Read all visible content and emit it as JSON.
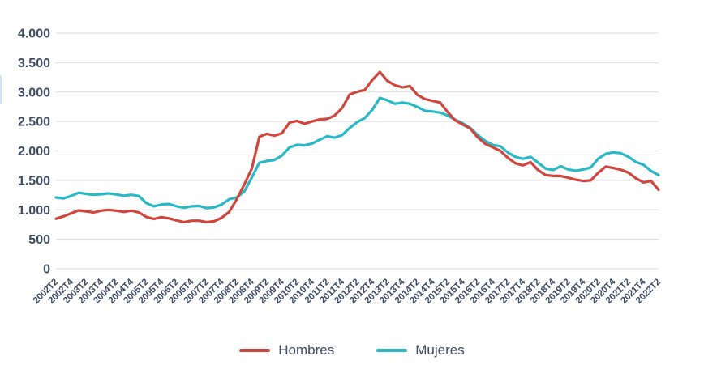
{
  "colors": {
    "grid": "#d9d9d9",
    "text": "#3d4a63",
    "background": "#ffffff",
    "hombres": "#d0453c",
    "mujeres": "#29b8c5"
  },
  "chart_data": {
    "type": "line",
    "title": "",
    "grid": true,
    "legend_position": "bottom",
    "x_axis": {
      "points_per_tick": 2,
      "tick_labels": [
        "2002T2",
        "2002T4",
        "2003T2",
        "2003T4",
        "2004T2",
        "2004T4",
        "2005T2",
        "2005T4",
        "2006T2",
        "2006T4",
        "2007T2",
        "2007T4",
        "2008T2",
        "2008T4",
        "2009T2",
        "2009T4",
        "2010T2",
        "2010T4",
        "2011T2",
        "2011T4",
        "2012T2",
        "2012T4",
        "2013T2",
        "2013T4",
        "2014T2",
        "2014T4",
        "2015T2",
        "2015T4",
        "2016T2",
        "2016T4",
        "2017T2",
        "2017T4",
        "2018T2",
        "2018T4",
        "2019T2",
        "2019T4",
        "2020T2",
        "2020T4",
        "2021T2",
        "2021T4",
        "2022T2"
      ]
    },
    "y_axis": {
      "range": [
        0,
        4000
      ],
      "tick_values": [
        0,
        500,
        1000,
        1500,
        2000,
        2500,
        3000,
        3500,
        4000
      ],
      "tick_labels": [
        "0",
        "500",
        "1.000",
        "1.500",
        "2.000",
        "2.500",
        "3.000",
        "3.500",
        "4.000"
      ]
    },
    "series": [
      {
        "name": "Hombres",
        "color": "#d0453c",
        "values": [
          850,
          890,
          940,
          990,
          975,
          955,
          985,
          1000,
          985,
          965,
          985,
          955,
          880,
          845,
          875,
          855,
          820,
          790,
          815,
          815,
          790,
          805,
          865,
          965,
          1180,
          1430,
          1700,
          2240,
          2290,
          2260,
          2300,
          2480,
          2510,
          2460,
          2500,
          2535,
          2545,
          2600,
          2730,
          2960,
          3005,
          3035,
          3205,
          3340,
          3190,
          3115,
          3080,
          3100,
          2950,
          2880,
          2850,
          2820,
          2660,
          2520,
          2450,
          2380,
          2230,
          2120,
          2060,
          2000,
          1880,
          1790,
          1755,
          1810,
          1675,
          1590,
          1575,
          1575,
          1545,
          1510,
          1490,
          1500,
          1630,
          1735,
          1710,
          1680,
          1630,
          1535,
          1465,
          1490,
          1340
        ]
      },
      {
        "name": "Mujeres",
        "color": "#29b8c5",
        "values": [
          1210,
          1195,
          1235,
          1290,
          1270,
          1255,
          1265,
          1280,
          1260,
          1240,
          1255,
          1235,
          1115,
          1060,
          1090,
          1100,
          1060,
          1035,
          1060,
          1065,
          1030,
          1040,
          1090,
          1180,
          1210,
          1310,
          1550,
          1800,
          1830,
          1845,
          1920,
          2060,
          2105,
          2095,
          2125,
          2190,
          2250,
          2225,
          2270,
          2390,
          2490,
          2560,
          2700,
          2900,
          2860,
          2800,
          2820,
          2800,
          2745,
          2680,
          2670,
          2650,
          2600,
          2530,
          2470,
          2390,
          2270,
          2170,
          2100,
          2080,
          1970,
          1900,
          1865,
          1900,
          1800,
          1700,
          1675,
          1740,
          1685,
          1665,
          1685,
          1720,
          1870,
          1950,
          1975,
          1960,
          1900,
          1810,
          1765,
          1660,
          1590
        ]
      }
    ]
  },
  "legend": {
    "hombres_label": "Hombres",
    "mujeres_label": "Mujeres"
  }
}
